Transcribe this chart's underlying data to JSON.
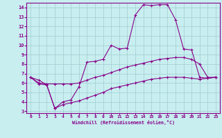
{
  "background_color": "#c8eef0",
  "grid_color": "#a0ccd0",
  "line_color": "#880088",
  "xlabel": "Windchill (Refroidissement éolien,°C)",
  "xlim": [
    -0.5,
    23.5
  ],
  "ylim": [
    2.8,
    14.5
  ],
  "yticks": [
    3,
    4,
    5,
    6,
    7,
    8,
    9,
    10,
    11,
    12,
    13,
    14
  ],
  "xticks": [
    0,
    1,
    2,
    3,
    4,
    5,
    6,
    7,
    8,
    9,
    10,
    11,
    12,
    13,
    14,
    15,
    16,
    17,
    18,
    19,
    20,
    21,
    22,
    23
  ],
  "series1_x": [
    0,
    1,
    2,
    3,
    4,
    5,
    6,
    7,
    8,
    9,
    10,
    11,
    12,
    13,
    14,
    15,
    16,
    17,
    18,
    19,
    20,
    21,
    22,
    23
  ],
  "series1_y": [
    6.6,
    6.3,
    5.8,
    3.3,
    4.0,
    4.2,
    5.6,
    8.2,
    8.3,
    8.5,
    10.0,
    9.6,
    9.7,
    13.2,
    14.3,
    14.2,
    14.3,
    14.3,
    12.7,
    9.6,
    9.5,
    6.6,
    6.5,
    6.6
  ],
  "series2_x": [
    0,
    1,
    2,
    3,
    4,
    5,
    6,
    7,
    8,
    9,
    10,
    11,
    12,
    13,
    14,
    15,
    16,
    17,
    18,
    19,
    20,
    21,
    22,
    23
  ],
  "series2_y": [
    6.6,
    6.0,
    5.9,
    5.9,
    5.9,
    5.9,
    6.0,
    6.3,
    6.6,
    6.8,
    7.1,
    7.4,
    7.7,
    7.9,
    8.1,
    8.3,
    8.5,
    8.6,
    8.7,
    8.7,
    8.5,
    8.0,
    6.6,
    6.6
  ],
  "series3_x": [
    0,
    1,
    2,
    3,
    4,
    5,
    6,
    7,
    8,
    9,
    10,
    11,
    12,
    13,
    14,
    15,
    16,
    17,
    18,
    19,
    20,
    21,
    22,
    23
  ],
  "series3_y": [
    6.6,
    5.9,
    5.8,
    3.3,
    3.7,
    3.9,
    4.1,
    4.4,
    4.7,
    5.0,
    5.4,
    5.6,
    5.8,
    6.0,
    6.2,
    6.4,
    6.5,
    6.6,
    6.6,
    6.6,
    6.5,
    6.4,
    6.5,
    6.6
  ]
}
